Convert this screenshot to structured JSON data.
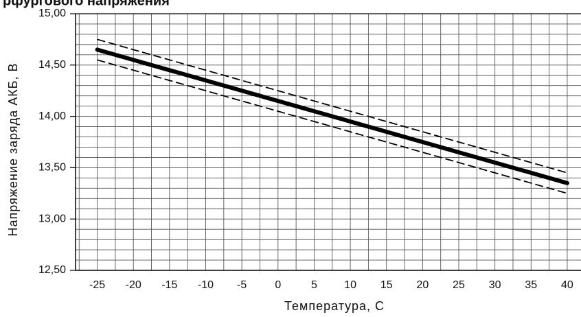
{
  "header": {
    "title_fragment": "рфургового напряжения"
  },
  "chart_data": {
    "type": "line",
    "title": "",
    "xlabel": "Температура, С",
    "ylabel": "Напряжение заряда АКБ, В",
    "x_ticks": [
      "-25",
      "-20",
      "-15",
      "-10",
      "-5",
      "0",
      "5",
      "10",
      "15",
      "20",
      "25",
      "30",
      "35",
      "40"
    ],
    "y_ticks": [
      "12,50",
      "13,00",
      "13,50",
      "14,00",
      "14,50",
      "15,00"
    ],
    "xlim": [
      -28,
      42
    ],
    "ylim": [
      12.5,
      15.0
    ],
    "grid": true,
    "series": [
      {
        "style": "solid-thick",
        "color": "#000000",
        "x": [
          -25,
          40
        ],
        "y": [
          14.65,
          13.35
        ]
      },
      {
        "style": "dashed",
        "color": "#000000",
        "x": [
          -25,
          40
        ],
        "y": [
          14.75,
          13.45
        ]
      },
      {
        "style": "dashed",
        "color": "#000000",
        "x": [
          -25,
          40
        ],
        "y": [
          14.55,
          13.25
        ]
      }
    ]
  }
}
